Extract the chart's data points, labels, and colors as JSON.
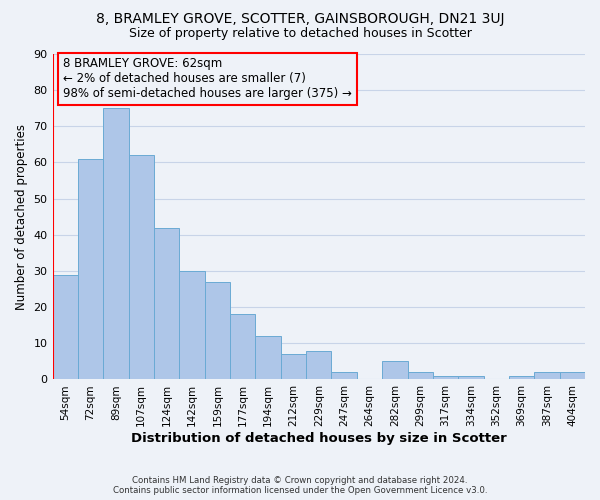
{
  "title": "8, BRAMLEY GROVE, SCOTTER, GAINSBOROUGH, DN21 3UJ",
  "subtitle": "Size of property relative to detached houses in Scotter",
  "xlabel": "Distribution of detached houses by size in Scotter",
  "ylabel": "Number of detached properties",
  "footer_line1": "Contains HM Land Registry data © Crown copyright and database right 2024.",
  "footer_line2": "Contains public sector information licensed under the Open Government Licence v3.0.",
  "bar_labels": [
    "54sqm",
    "72sqm",
    "89sqm",
    "107sqm",
    "124sqm",
    "142sqm",
    "159sqm",
    "177sqm",
    "194sqm",
    "212sqm",
    "229sqm",
    "247sqm",
    "264sqm",
    "282sqm",
    "299sqm",
    "317sqm",
    "334sqm",
    "352sqm",
    "369sqm",
    "387sqm",
    "404sqm"
  ],
  "bar_values": [
    29,
    61,
    75,
    62,
    42,
    30,
    27,
    18,
    12,
    7,
    8,
    2,
    0,
    5,
    2,
    1,
    1,
    0,
    1,
    2,
    2
  ],
  "bar_color": "#aec6e8",
  "bar_edge_color": "#6aaad4",
  "grid_color": "#c8d4e8",
  "background_color": "#eef2f8",
  "annotation_text": "8 BRAMLEY GROVE: 62sqm\n← 2% of detached houses are smaller (7)\n98% of semi-detached houses are larger (375) →",
  "annotation_box_edgecolor": "red",
  "annotation_fontsize": 8.5,
  "title_fontsize": 10,
  "subtitle_fontsize": 9,
  "ylabel_fontsize": 8.5,
  "xlabel_fontsize": 9.5,
  "ylim": [
    0,
    90
  ],
  "yticks": [
    0,
    10,
    20,
    30,
    40,
    50,
    60,
    70,
    80,
    90
  ],
  "red_line_x": -0.5
}
